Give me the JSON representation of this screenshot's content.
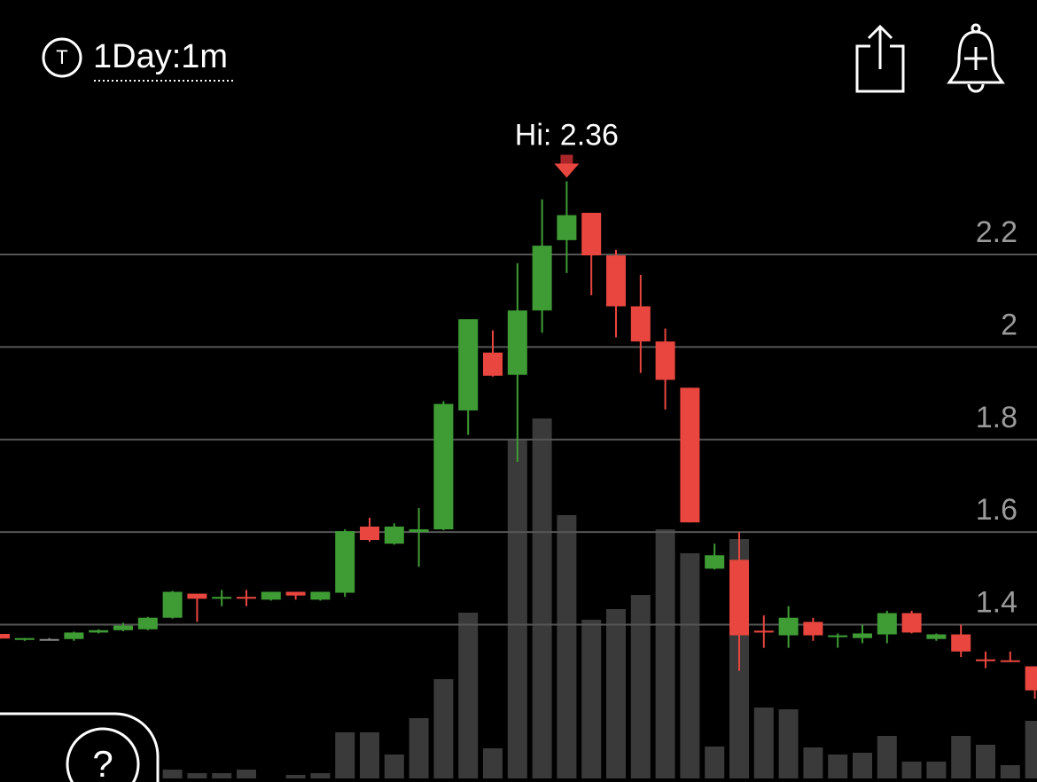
{
  "header": {
    "badge": "T",
    "interval": "1Day:1m"
  },
  "help_label": "?",
  "chart_data": {
    "type": "candlestick",
    "annotation": "Hi: 2.36",
    "annotation_index": 23,
    "colors": {
      "up": "#3f9c35",
      "down": "#e8463f",
      "flat": "#8a8a8a",
      "volume": "#3a3a3a"
    },
    "ylim": [
      1.06,
      2.52
    ],
    "yticks": [
      1.4,
      1.6,
      1.8,
      2,
      2.2
    ],
    "grid": true,
    "open": [
      1.38,
      1.367,
      1.369,
      1.369,
      1.383,
      1.388,
      1.39,
      1.415,
      1.467,
      1.456,
      1.46,
      1.454,
      1.471,
      1.454,
      1.469,
      1.612,
      1.575,
      1.6,
      1.606,
      1.863,
      1.988,
      1.94,
      2.079,
      2.231,
      2.29,
      2.198,
      2.088,
      2.012,
      1.912,
      1.521,
      1.54,
      1.387,
      1.377,
      1.406,
      1.373,
      1.371,
      1.379,
      1.425,
      1.369,
      1.379,
      1.325,
      1.323,
      1.31
    ],
    "high": [
      1.38,
      1.371,
      1.371,
      1.385,
      1.39,
      1.404,
      1.417,
      1.473,
      1.467,
      1.475,
      1.475,
      1.471,
      1.471,
      1.471,
      1.606,
      1.631,
      1.619,
      1.652,
      1.883,
      2.06,
      2.036,
      2.181,
      2.319,
      2.358,
      2.29,
      2.21,
      2.156,
      2.04,
      1.912,
      1.575,
      1.6,
      1.42,
      1.44,
      1.415,
      1.381,
      1.4,
      1.43,
      1.43,
      1.381,
      1.4,
      1.342,
      1.342,
      1.31
    ],
    "low": [
      1.37,
      1.365,
      1.367,
      1.365,
      1.381,
      1.386,
      1.388,
      1.413,
      1.406,
      1.44,
      1.44,
      1.452,
      1.454,
      1.452,
      1.46,
      1.579,
      1.573,
      1.525,
      1.604,
      1.81,
      1.936,
      1.752,
      2.031,
      2.16,
      2.112,
      2.021,
      1.944,
      1.865,
      1.621,
      1.519,
      1.3,
      1.35,
      1.35,
      1.365,
      1.35,
      1.36,
      1.36,
      1.381,
      1.365,
      1.33,
      1.306,
      1.319,
      1.24
    ],
    "close": [
      1.37,
      1.371,
      1.369,
      1.383,
      1.388,
      1.398,
      1.415,
      1.471,
      1.456,
      1.46,
      1.456,
      1.471,
      1.463,
      1.471,
      1.602,
      1.583,
      1.612,
      1.606,
      1.877,
      2.06,
      1.938,
      2.079,
      2.219,
      2.285,
      2.198,
      2.088,
      2.012,
      1.929,
      1.621,
      1.55,
      1.377,
      1.383,
      1.415,
      1.377,
      1.377,
      1.381,
      1.425,
      1.383,
      1.379,
      1.342,
      1.321,
      1.321,
      1.258
    ],
    "volume": [
      2,
      2,
      4,
      3,
      2,
      3,
      8,
      10,
      6,
      6,
      10,
      0,
      4,
      6,
      52,
      52,
      27,
      68,
      112,
      187,
      34,
      383,
      406,
      297,
      179,
      191,
      207,
      281,
      254,
      36,
      270,
      80,
      78,
      35,
      27,
      29,
      48,
      19,
      19,
      48,
      38,
      15,
      65
    ]
  }
}
